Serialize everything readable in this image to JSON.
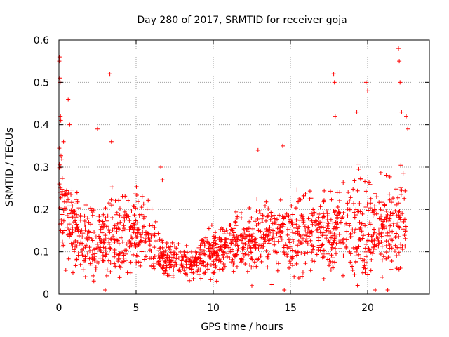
{
  "chart_data": {
    "type": "scatter",
    "title": "Day 280 of 2017, SRMTID for receiver goja",
    "xlabel": "GPS time / hours",
    "ylabel": "SRMTID / TECUs",
    "xlim": [
      0,
      24
    ],
    "ylim": [
      0,
      0.6
    ],
    "x_ticks": [
      0,
      5,
      10,
      15,
      20
    ],
    "x_tick_labels": [
      "0",
      "5",
      "10",
      "15",
      "20"
    ],
    "y_ticks": [
      0,
      0.1,
      0.2,
      0.3,
      0.4,
      0.5,
      0.6
    ],
    "y_tick_labels": [
      "0",
      "0.1",
      "0.2",
      "0.3",
      "0.4",
      "0.5",
      "0.6"
    ],
    "grid": true,
    "marker": "+",
    "color": "#ff0000",
    "series": [
      {
        "name": "SRMTID",
        "profile": [
          {
            "x": 0.0,
            "mean": 0.26,
            "spread": 0.13
          },
          {
            "x": 0.5,
            "mean": 0.19,
            "spread": 0.09
          },
          {
            "x": 1.5,
            "mean": 0.13,
            "spread": 0.07
          },
          {
            "x": 3.0,
            "mean": 0.13,
            "spread": 0.08
          },
          {
            "x": 4.5,
            "mean": 0.14,
            "spread": 0.08
          },
          {
            "x": 5.5,
            "mean": 0.16,
            "spread": 0.09
          },
          {
            "x": 6.5,
            "mean": 0.085,
            "spread": 0.04
          },
          {
            "x": 8.5,
            "mean": 0.075,
            "spread": 0.035
          },
          {
            "x": 10.0,
            "mean": 0.1,
            "spread": 0.05
          },
          {
            "x": 12.0,
            "mean": 0.12,
            "spread": 0.06
          },
          {
            "x": 14.0,
            "mean": 0.14,
            "spread": 0.07
          },
          {
            "x": 16.0,
            "mean": 0.14,
            "spread": 0.08
          },
          {
            "x": 18.0,
            "mean": 0.17,
            "spread": 0.1
          },
          {
            "x": 20.0,
            "mean": 0.15,
            "spread": 0.1
          },
          {
            "x": 22.5,
            "mean": 0.16,
            "spread": 0.1
          }
        ],
        "point_count": 1500,
        "outliers": [
          [
            0.02,
            0.55
          ],
          [
            0.04,
            0.56
          ],
          [
            0.05,
            0.51
          ],
          [
            0.08,
            0.5
          ],
          [
            0.1,
            0.42
          ],
          [
            0.12,
            0.41
          ],
          [
            0.3,
            0.36
          ],
          [
            0.6,
            0.46
          ],
          [
            0.7,
            0.4
          ],
          [
            2.5,
            0.39
          ],
          [
            3.3,
            0.52
          ],
          [
            3.4,
            0.36
          ],
          [
            6.6,
            0.3
          ],
          [
            6.7,
            0.27
          ],
          [
            12.9,
            0.34
          ],
          [
            14.5,
            0.35
          ],
          [
            17.8,
            0.52
          ],
          [
            17.85,
            0.5
          ],
          [
            17.9,
            0.42
          ],
          [
            19.3,
            0.43
          ],
          [
            19.9,
            0.5
          ],
          [
            20.0,
            0.48
          ],
          [
            22.0,
            0.58
          ],
          [
            22.05,
            0.55
          ],
          [
            22.1,
            0.5
          ],
          [
            22.2,
            0.43
          ],
          [
            22.5,
            0.42
          ],
          [
            22.6,
            0.39
          ],
          [
            12.5,
            0.02
          ],
          [
            14.6,
            0.01
          ],
          [
            3.0,
            0.01
          ],
          [
            20.5,
            0.01
          ],
          [
            21.3,
            0.01
          ]
        ]
      }
    ]
  }
}
